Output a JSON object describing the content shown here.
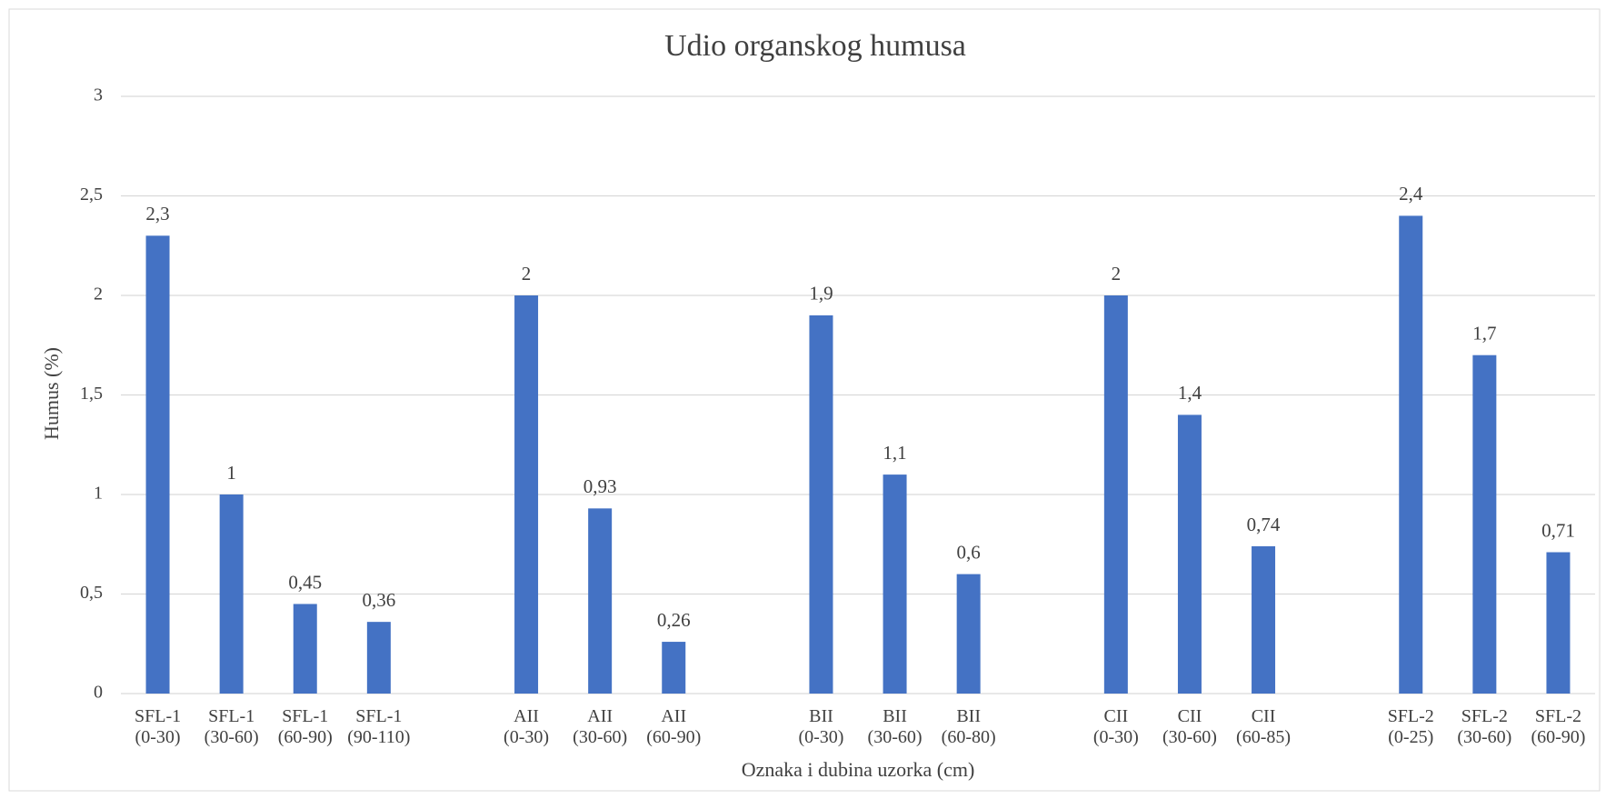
{
  "chart_data": {
    "type": "bar",
    "title": "Udio organskog humusa",
    "x_label": "Oznaka i dubina uzorka (cm)",
    "y_label": "Humus (%)",
    "categories": [
      "SFL-1\n(0-30)",
      "SFL-1\n(30-60)",
      "SFL-1\n(60-90)",
      "SFL-1\n(90-110)",
      null,
      "AII\n(0-30)",
      "AII\n(30-60)",
      "AII\n(60-90)",
      null,
      "BII\n(0-30)",
      "BII\n(30-60)",
      "BII\n(60-80)",
      null,
      "CII\n(0-30)",
      "CII\n(30-60)",
      "CII\n(60-85)",
      null,
      "SFL-2\n(0-25)",
      "SFL-2\n(30-60)",
      "SFL-2\n(60-90)"
    ],
    "values": [
      2.3,
      1,
      0.45,
      0.36,
      null,
      2,
      0.93,
      0.26,
      null,
      1.9,
      1.1,
      0.6,
      null,
      2,
      1.4,
      0.74,
      null,
      2.4,
      1.7,
      0.71
    ],
    "value_labels": [
      "2,3",
      "1",
      "0,45",
      "0,36",
      null,
      "2",
      "0,93",
      "0,26",
      null,
      "1,9",
      "1,1",
      "0,6",
      null,
      "2",
      "1,4",
      "0,74",
      null,
      "2,4",
      "1,7",
      "0,71"
    ],
    "color": "#4472c4",
    "ylim": [
      0,
      3
    ],
    "yticks": [
      0,
      {
        "value": 0.5,
        "label": "0,5"
      },
      1,
      {
        "value": 1.5,
        "label": "1,5"
      },
      2,
      {
        "value": 2.5,
        "label": "2,5"
      },
      3
    ],
    "grid": true
  }
}
